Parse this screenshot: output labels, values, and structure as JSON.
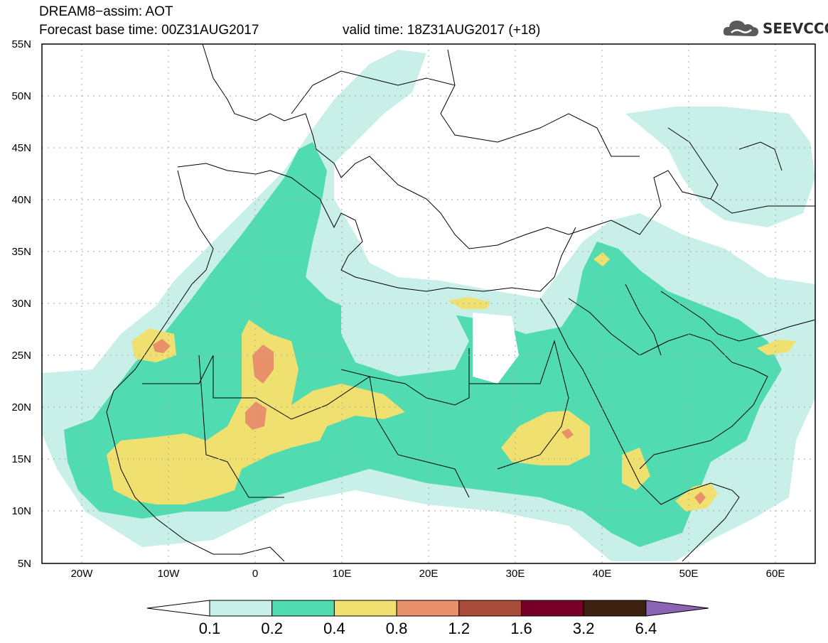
{
  "header": {
    "title_line1": "DREAM8−assim: AOT",
    "title_line2": "Forecast base time: 00Z31AUG2017",
    "valid_time": "valid time: 18Z31AUG2017 (+18)"
  },
  "logo": {
    "text": "SEEVCCC",
    "icon": "cloud-logo-icon"
  },
  "map": {
    "lat_labels": [
      "55N",
      "50N",
      "45N",
      "40N",
      "35N",
      "30N",
      "25N",
      "20N",
      "15N",
      "10N",
      "5N"
    ],
    "lon_labels": [
      "20W",
      "10W",
      "0",
      "10E",
      "20E",
      "30E",
      "40E",
      "50E",
      "60E"
    ],
    "extent": {
      "lon_min": -25,
      "lon_max": 65,
      "lat_min": 5,
      "lat_max": 55
    }
  },
  "colorbar": {
    "labels": [
      "0.1",
      "0.2",
      "0.4",
      "0.8",
      "1.2",
      "1.6",
      "3.2",
      "6.4"
    ],
    "colors": [
      "#ffffff",
      "#c8f0e8",
      "#50dcb0",
      "#f0e070",
      "#e8906a",
      "#a84b3a",
      "#780028",
      "#3c2010",
      "#8c64b4"
    ]
  }
}
